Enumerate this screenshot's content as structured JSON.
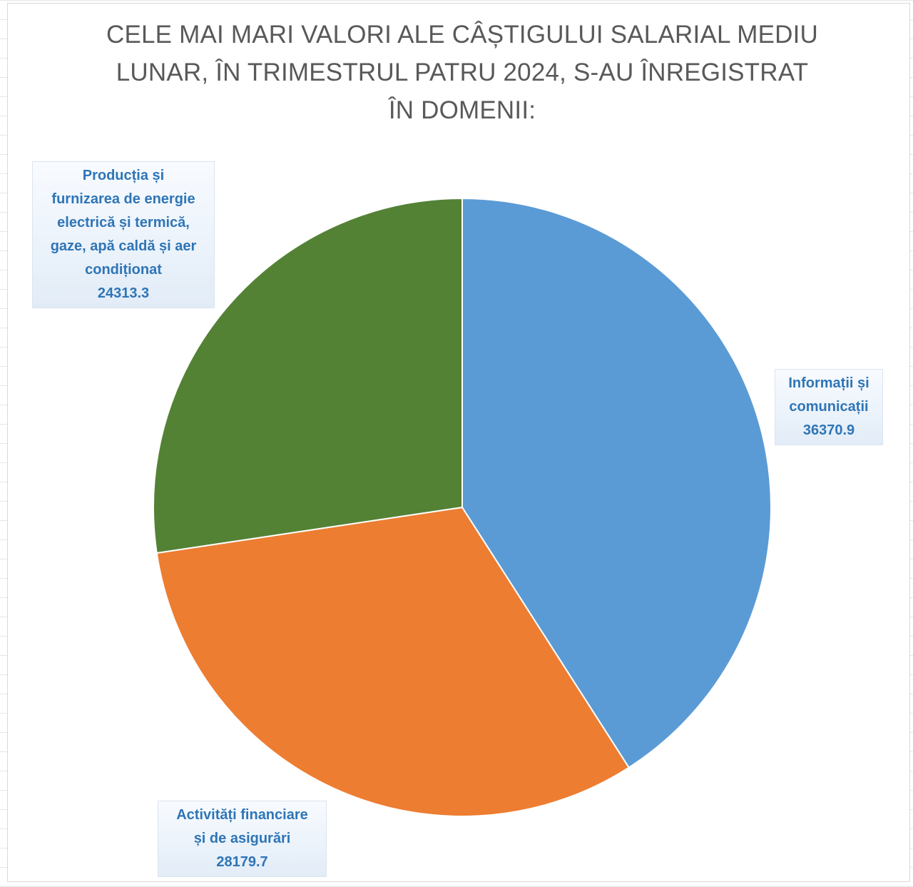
{
  "chart_data": {
    "type": "pie",
    "title_lines": [
      "CELE MAI MARI VALORI ALE CÂȘTIGULUI SALARIAL MEDIU",
      "LUNAR, ÎN TRIMESTRUL PATRU 2024, S-AU ÎNREGISTRAT",
      "ÎN DOMENII:"
    ],
    "slices": [
      {
        "label_lines": [
          "Informații și",
          "comunicații"
        ],
        "value": 36370.9,
        "value_text": "36370.9",
        "color": "#5b9bd5"
      },
      {
        "label_lines": [
          "Activități financiare",
          "și de asigurări"
        ],
        "value": 28179.7,
        "value_text": "28179.7",
        "color": "#ed7d31"
      },
      {
        "label_lines": [
          "Producția și",
          "furnizarea de energie",
          "electrică și termică,",
          "gaze, apă caldă și aer",
          "condiționat"
        ],
        "value": 24313.3,
        "value_text": "24313.3",
        "color": "#548235"
      }
    ],
    "start_angle": "12 o'clock",
    "direction": "clockwise",
    "legend": "none",
    "label_color": "#2e75b6"
  }
}
